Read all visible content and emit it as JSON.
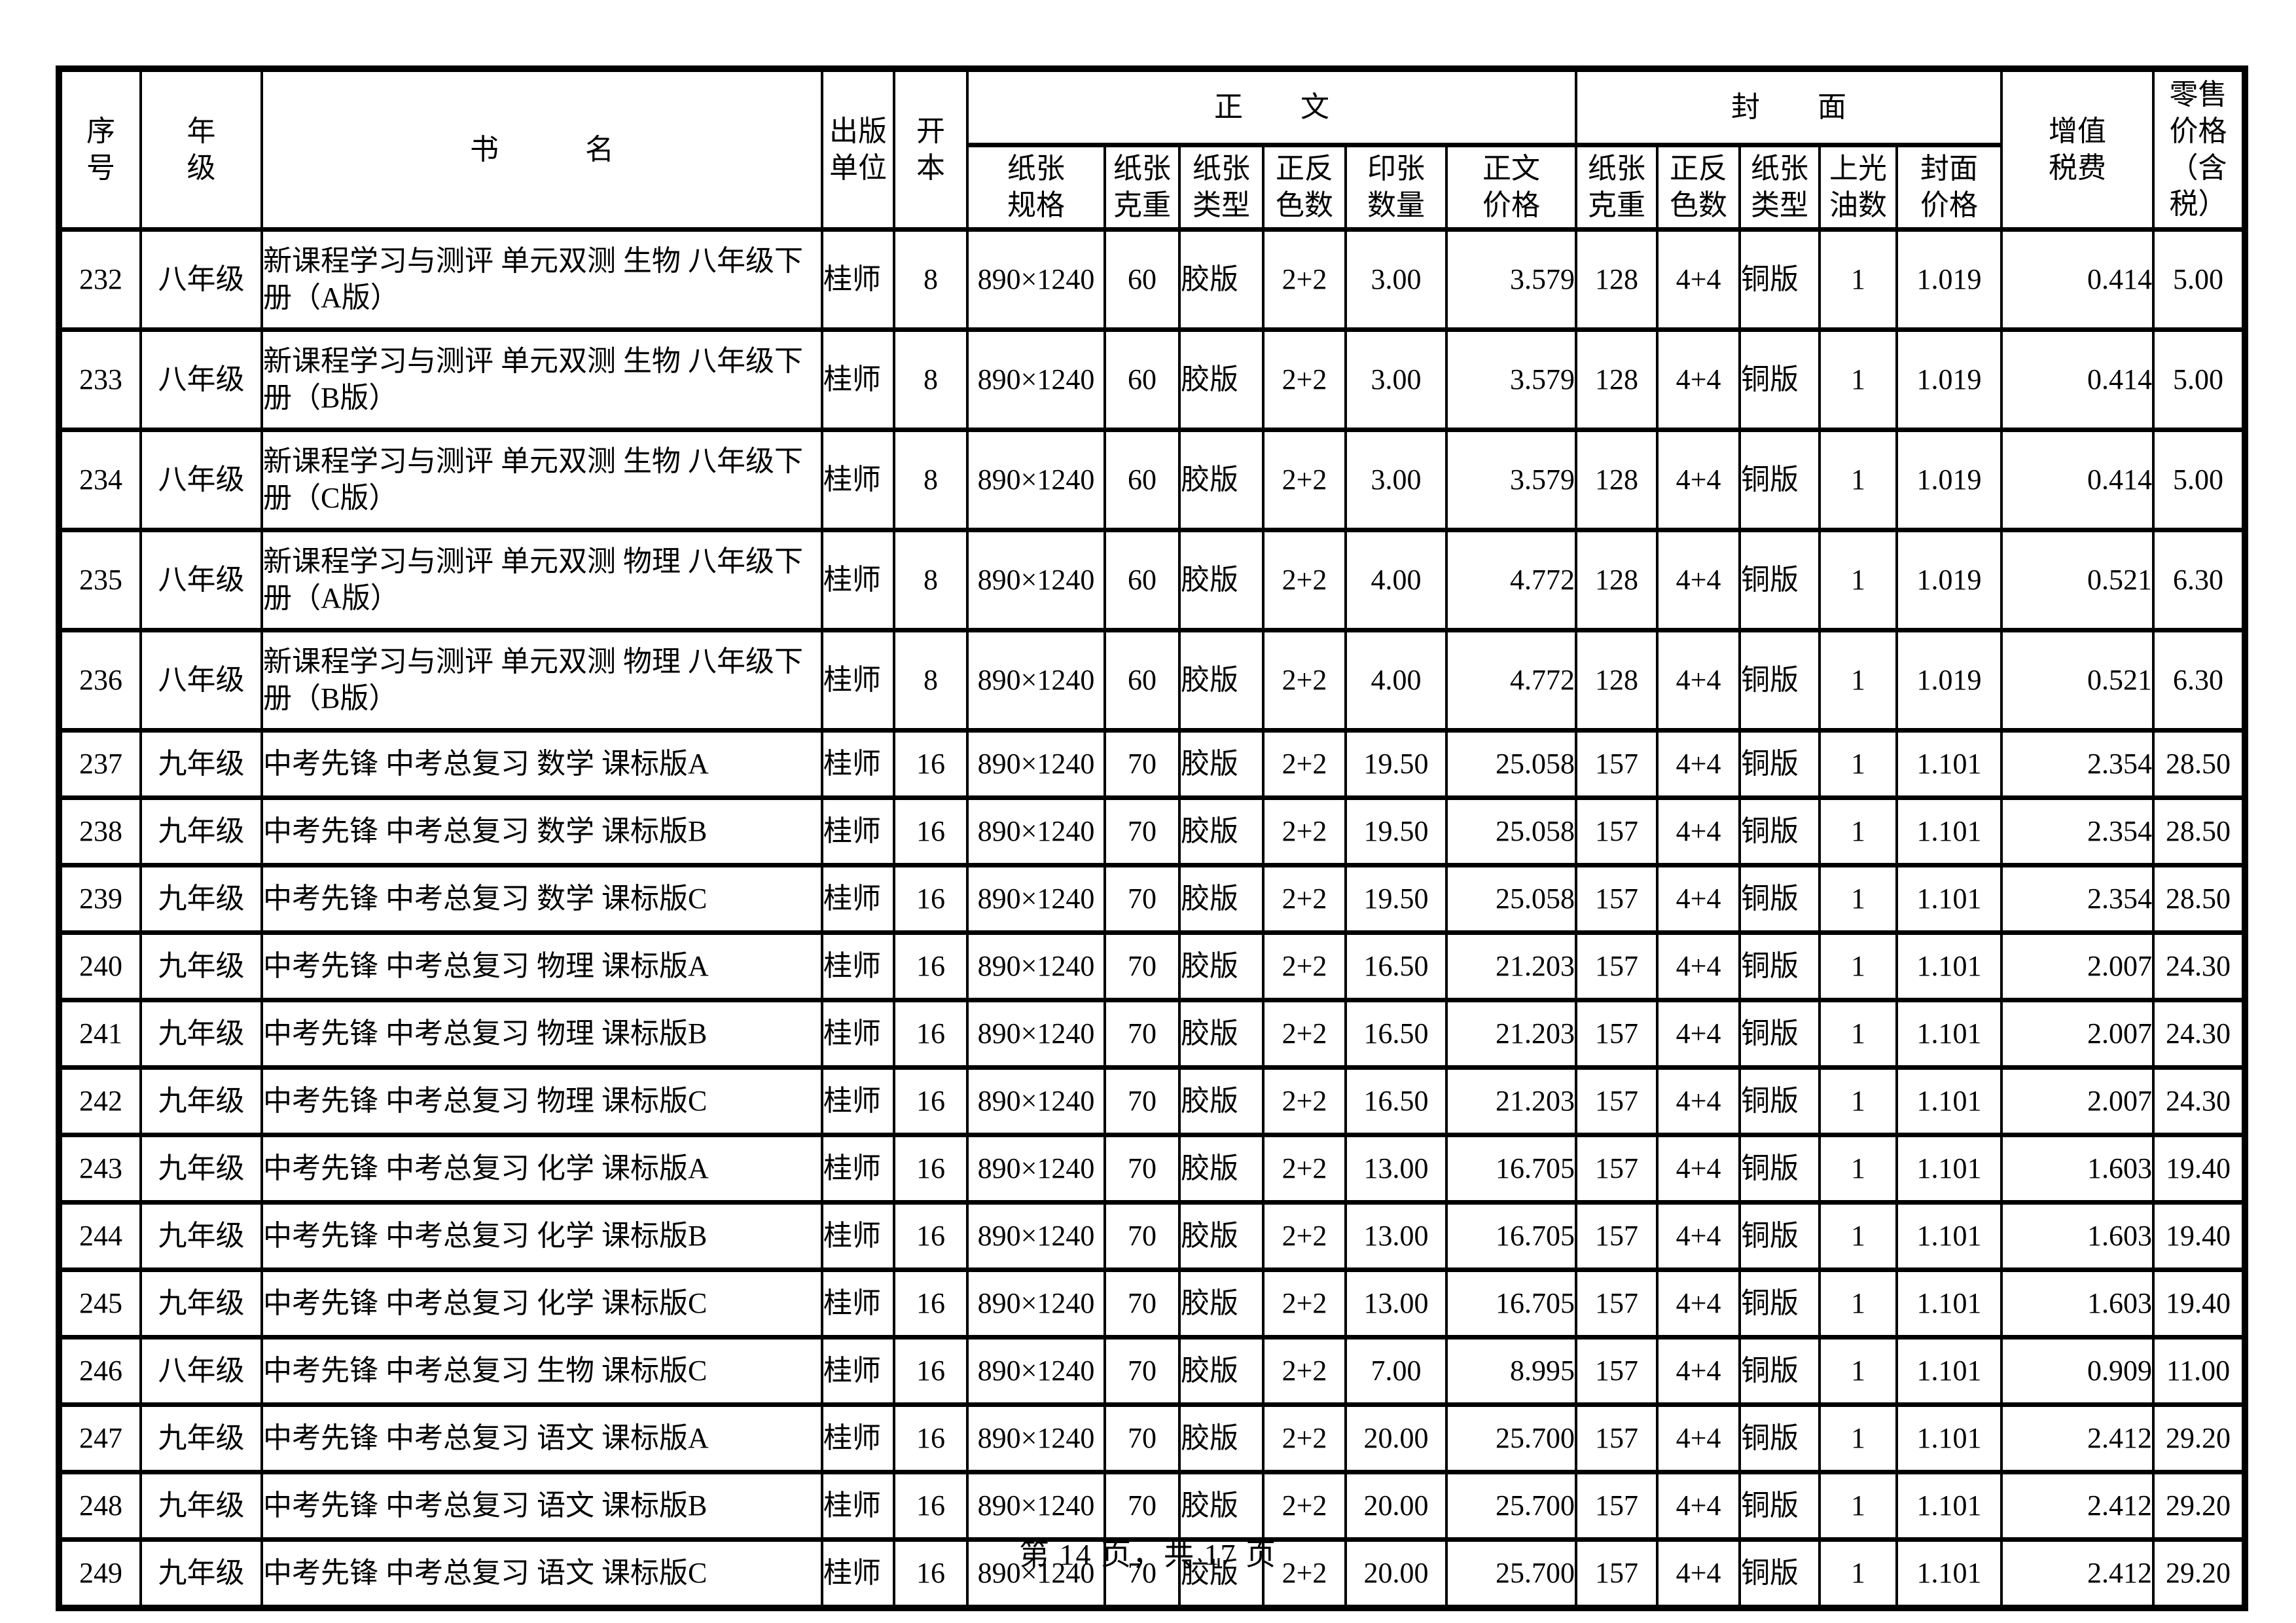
{
  "header": {
    "serial": "序\n号",
    "grade": "年\n级",
    "book_name": "书　　　名",
    "publisher": "出版\n单位",
    "format": "开\n本",
    "body_group": "正　　文",
    "cover_group": "封　　面",
    "vat": "增值\n税费",
    "retail": "零售\n价格\n（含\n税）",
    "body_sub": {
      "paper_spec": "纸张\n规格",
      "paper_weight": "纸张\n克重",
      "paper_type": "纸张\n类型",
      "color_count": "正反\n色数",
      "sheet_count": "印张\n数量",
      "body_price": "正文\n价格"
    },
    "cover_sub": {
      "paper_weight": "纸张\n克重",
      "color_count": "正反\n色数",
      "paper_type": "纸张\n类型",
      "varnish_count": "上光\n油数",
      "cover_price": "封面\n价格"
    }
  },
  "rows": [
    {
      "no": "232",
      "grade": "八年级",
      "title": "新课程学习与测评 单元双测 生物 八年级下\n册（A版）",
      "publisher": "桂师",
      "format": "8",
      "spec": "890×1240",
      "weight": "60",
      "type": "胶版",
      "colors": "2+2",
      "sheets": "3.00",
      "text_price": "3.579",
      "cover_weight": "128",
      "cover_colors": "4+4",
      "cover_type": "铜版",
      "varnish": "1",
      "cover_price": "1.019",
      "vat": "0.414",
      "retail": "5.00"
    },
    {
      "no": "233",
      "grade": "八年级",
      "title": "新课程学习与测评 单元双测 生物 八年级下\n册（B版）",
      "publisher": "桂师",
      "format": "8",
      "spec": "890×1240",
      "weight": "60",
      "type": "胶版",
      "colors": "2+2",
      "sheets": "3.00",
      "text_price": "3.579",
      "cover_weight": "128",
      "cover_colors": "4+4",
      "cover_type": "铜版",
      "varnish": "1",
      "cover_price": "1.019",
      "vat": "0.414",
      "retail": "5.00"
    },
    {
      "no": "234",
      "grade": "八年级",
      "title": "新课程学习与测评 单元双测 生物 八年级下\n册（C版）",
      "publisher": "桂师",
      "format": "8",
      "spec": "890×1240",
      "weight": "60",
      "type": "胶版",
      "colors": "2+2",
      "sheets": "3.00",
      "text_price": "3.579",
      "cover_weight": "128",
      "cover_colors": "4+4",
      "cover_type": "铜版",
      "varnish": "1",
      "cover_price": "1.019",
      "vat": "0.414",
      "retail": "5.00"
    },
    {
      "no": "235",
      "grade": "八年级",
      "title": "新课程学习与测评 单元双测 物理 八年级下\n册（A版）",
      "publisher": "桂师",
      "format": "8",
      "spec": "890×1240",
      "weight": "60",
      "type": "胶版",
      "colors": "2+2",
      "sheets": "4.00",
      "text_price": "4.772",
      "cover_weight": "128",
      "cover_colors": "4+4",
      "cover_type": "铜版",
      "varnish": "1",
      "cover_price": "1.019",
      "vat": "0.521",
      "retail": "6.30"
    },
    {
      "no": "236",
      "grade": "八年级",
      "title": "新课程学习与测评 单元双测 物理 八年级下\n册（B版）",
      "publisher": "桂师",
      "format": "8",
      "spec": "890×1240",
      "weight": "60",
      "type": "胶版",
      "colors": "2+2",
      "sheets": "4.00",
      "text_price": "4.772",
      "cover_weight": "128",
      "cover_colors": "4+4",
      "cover_type": "铜版",
      "varnish": "1",
      "cover_price": "1.019",
      "vat": "0.521",
      "retail": "6.30"
    },
    {
      "no": "237",
      "grade": "九年级",
      "title": "中考先锋 中考总复习 数学 课标版A",
      "publisher": "桂师",
      "format": "16",
      "spec": "890×1240",
      "weight": "70",
      "type": "胶版",
      "colors": "2+2",
      "sheets": "19.50",
      "text_price": "25.058",
      "cover_weight": "157",
      "cover_colors": "4+4",
      "cover_type": "铜版",
      "varnish": "1",
      "cover_price": "1.101",
      "vat": "2.354",
      "retail": "28.50"
    },
    {
      "no": "238",
      "grade": "九年级",
      "title": "中考先锋 中考总复习 数学 课标版B",
      "publisher": "桂师",
      "format": "16",
      "spec": "890×1240",
      "weight": "70",
      "type": "胶版",
      "colors": "2+2",
      "sheets": "19.50",
      "text_price": "25.058",
      "cover_weight": "157",
      "cover_colors": "4+4",
      "cover_type": "铜版",
      "varnish": "1",
      "cover_price": "1.101",
      "vat": "2.354",
      "retail": "28.50"
    },
    {
      "no": "239",
      "grade": "九年级",
      "title": "中考先锋 中考总复习 数学 课标版C",
      "publisher": "桂师",
      "format": "16",
      "spec": "890×1240",
      "weight": "70",
      "type": "胶版",
      "colors": "2+2",
      "sheets": "19.50",
      "text_price": "25.058",
      "cover_weight": "157",
      "cover_colors": "4+4",
      "cover_type": "铜版",
      "varnish": "1",
      "cover_price": "1.101",
      "vat": "2.354",
      "retail": "28.50"
    },
    {
      "no": "240",
      "grade": "九年级",
      "title": "中考先锋 中考总复习 物理 课标版A",
      "publisher": "桂师",
      "format": "16",
      "spec": "890×1240",
      "weight": "70",
      "type": "胶版",
      "colors": "2+2",
      "sheets": "16.50",
      "text_price": "21.203",
      "cover_weight": "157",
      "cover_colors": "4+4",
      "cover_type": "铜版",
      "varnish": "1",
      "cover_price": "1.101",
      "vat": "2.007",
      "retail": "24.30"
    },
    {
      "no": "241",
      "grade": "九年级",
      "title": "中考先锋 中考总复习 物理 课标版B",
      "publisher": "桂师",
      "format": "16",
      "spec": "890×1240",
      "weight": "70",
      "type": "胶版",
      "colors": "2+2",
      "sheets": "16.50",
      "text_price": "21.203",
      "cover_weight": "157",
      "cover_colors": "4+4",
      "cover_type": "铜版",
      "varnish": "1",
      "cover_price": "1.101",
      "vat": "2.007",
      "retail": "24.30"
    },
    {
      "no": "242",
      "grade": "九年级",
      "title": "中考先锋 中考总复习 物理 课标版C",
      "publisher": "桂师",
      "format": "16",
      "spec": "890×1240",
      "weight": "70",
      "type": "胶版",
      "colors": "2+2",
      "sheets": "16.50",
      "text_price": "21.203",
      "cover_weight": "157",
      "cover_colors": "4+4",
      "cover_type": "铜版",
      "varnish": "1",
      "cover_price": "1.101",
      "vat": "2.007",
      "retail": "24.30"
    },
    {
      "no": "243",
      "grade": "九年级",
      "title": "中考先锋 中考总复习 化学 课标版A",
      "publisher": "桂师",
      "format": "16",
      "spec": "890×1240",
      "weight": "70",
      "type": "胶版",
      "colors": "2+2",
      "sheets": "13.00",
      "text_price": "16.705",
      "cover_weight": "157",
      "cover_colors": "4+4",
      "cover_type": "铜版",
      "varnish": "1",
      "cover_price": "1.101",
      "vat": "1.603",
      "retail": "19.40"
    },
    {
      "no": "244",
      "grade": "九年级",
      "title": "中考先锋 中考总复习 化学 课标版B",
      "publisher": "桂师",
      "format": "16",
      "spec": "890×1240",
      "weight": "70",
      "type": "胶版",
      "colors": "2+2",
      "sheets": "13.00",
      "text_price": "16.705",
      "cover_weight": "157",
      "cover_colors": "4+4",
      "cover_type": "铜版",
      "varnish": "1",
      "cover_price": "1.101",
      "vat": "1.603",
      "retail": "19.40"
    },
    {
      "no": "245",
      "grade": "九年级",
      "title": "中考先锋 中考总复习 化学 课标版C",
      "publisher": "桂师",
      "format": "16",
      "spec": "890×1240",
      "weight": "70",
      "type": "胶版",
      "colors": "2+2",
      "sheets": "13.00",
      "text_price": "16.705",
      "cover_weight": "157",
      "cover_colors": "4+4",
      "cover_type": "铜版",
      "varnish": "1",
      "cover_price": "1.101",
      "vat": "1.603",
      "retail": "19.40"
    },
    {
      "no": "246",
      "grade": "八年级",
      "title": "中考先锋 中考总复习 生物 课标版C",
      "publisher": "桂师",
      "format": "16",
      "spec": "890×1240",
      "weight": "70",
      "type": "胶版",
      "colors": "2+2",
      "sheets": "7.00",
      "text_price": "8.995",
      "cover_weight": "157",
      "cover_colors": "4+4",
      "cover_type": "铜版",
      "varnish": "1",
      "cover_price": "1.101",
      "vat": "0.909",
      "retail": "11.00"
    },
    {
      "no": "247",
      "grade": "九年级",
      "title": "中考先锋 中考总复习 语文 课标版A",
      "publisher": "桂师",
      "format": "16",
      "spec": "890×1240",
      "weight": "70",
      "type": "胶版",
      "colors": "2+2",
      "sheets": "20.00",
      "text_price": "25.700",
      "cover_weight": "157",
      "cover_colors": "4+4",
      "cover_type": "铜版",
      "varnish": "1",
      "cover_price": "1.101",
      "vat": "2.412",
      "retail": "29.20"
    },
    {
      "no": "248",
      "grade": "九年级",
      "title": "中考先锋 中考总复习 语文 课标版B",
      "publisher": "桂师",
      "format": "16",
      "spec": "890×1240",
      "weight": "70",
      "type": "胶版",
      "colors": "2+2",
      "sheets": "20.00",
      "text_price": "25.700",
      "cover_weight": "157",
      "cover_colors": "4+4",
      "cover_type": "铜版",
      "varnish": "1",
      "cover_price": "1.101",
      "vat": "2.412",
      "retail": "29.20"
    },
    {
      "no": "249",
      "grade": "九年级",
      "title": "中考先锋 中考总复习 语文 课标版C",
      "publisher": "桂师",
      "format": "16",
      "spec": "890×1240",
      "weight": "70",
      "type": "胶版",
      "colors": "2+2",
      "sheets": "20.00",
      "text_price": "25.700",
      "cover_weight": "157",
      "cover_colors": "4+4",
      "cover_type": "铜版",
      "varnish": "1",
      "cover_price": "1.101",
      "vat": "2.412",
      "retail": "29.20"
    }
  ],
  "footer": {
    "page_text": "第 14 页，共 17 页"
  }
}
